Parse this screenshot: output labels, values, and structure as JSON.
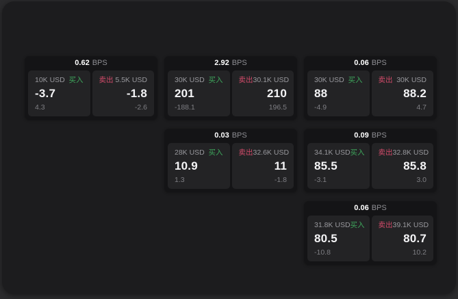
{
  "labels": {
    "bps": "BPS",
    "buy": "买入",
    "sell": "卖出"
  },
  "colors": {
    "buy_green": "#3ea65c",
    "sell_red": "#d24b6a",
    "card_bg": "#141416",
    "panel_bg": "#232325",
    "window_bg": "#1c1c1e",
    "outer_bg": "#2b2b2d"
  },
  "cards": [
    {
      "bps": "0.62",
      "buy": {
        "amount": "10K USD",
        "value": "-3.7",
        "delta": "4.3"
      },
      "sell": {
        "amount": "5.5K USD",
        "value": "-1.8",
        "delta": "-2.6"
      }
    },
    {
      "bps": "2.92",
      "buy": {
        "amount": "30K USD",
        "value": "201",
        "delta": "-188.1"
      },
      "sell": {
        "amount": "30.1K USD",
        "value": "210",
        "delta": "196.5"
      }
    },
    {
      "bps": "0.06",
      "buy": {
        "amount": "30K USD",
        "value": "88",
        "delta": "-4.9"
      },
      "sell": {
        "amount": "30K USD",
        "value": "88.2",
        "delta": "4.7"
      }
    },
    {
      "bps": "0.03",
      "buy": {
        "amount": "28K USD",
        "value": "10.9",
        "delta": "1.3"
      },
      "sell": {
        "amount": "32.6K USD",
        "value": "11",
        "delta": "-1.8"
      }
    },
    {
      "bps": "0.09",
      "buy": {
        "amount": "34.1K USD",
        "value": "85.5",
        "delta": "-3.1"
      },
      "sell": {
        "amount": "32.8K USD",
        "value": "85.8",
        "delta": "3.0"
      }
    },
    {
      "bps": "0.06",
      "buy": {
        "amount": "31.8K USD",
        "value": "80.5",
        "delta": "-10.8"
      },
      "sell": {
        "amount": "39.1K USD",
        "value": "80.7",
        "delta": "10.2"
      }
    }
  ]
}
